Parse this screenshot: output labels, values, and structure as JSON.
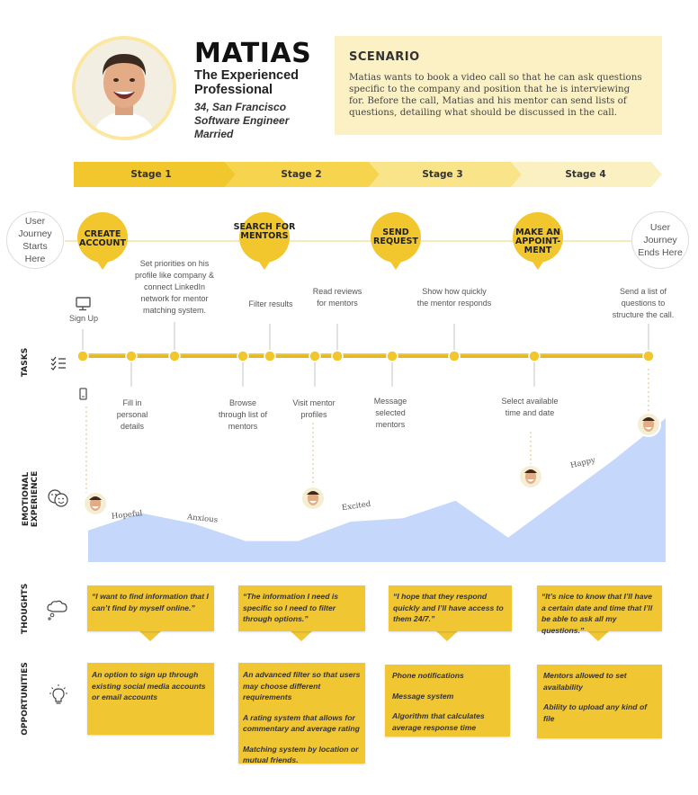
{
  "persona": {
    "name": "MATIAS",
    "role": "The Experienced Professional",
    "details": [
      "34, San Francisco",
      "Software Engineer",
      "Married"
    ]
  },
  "scenario": {
    "title": "SCENARIO",
    "text": "Matias wants to book a video call so that he can ask questions specific to the company and position that he is interviewing for. Before the call, Matias and his mentor can send lists of questions, detailing what should be discussed in the call."
  },
  "stages": [
    "Stage 1",
    "Stage 2",
    "Stage 3",
    "Stage 4"
  ],
  "journey": {
    "start": "User Journey Starts Here",
    "end": "User Journey Ends Here",
    "milestones": [
      "CREATE ACCOUNT",
      "SEARCH FOR MENTORS",
      "SEND REQUEST",
      "MAKE AN APPOINT-MENT"
    ]
  },
  "device_labels": {
    "desktop": "Sign Up"
  },
  "tasks": {
    "above": [
      "Set priorities on his profile like company & connect LinkedIn network for mentor matching system.",
      "Filter results",
      "Read reviews for mentors",
      "Show how quickly the mentor responds",
      "Send a list of questions to structure the call."
    ],
    "below": [
      "Fill in personal details",
      "Browse through list of mentors",
      "Visit mentor profiles",
      "Message selected mentors",
      "Select available time and date"
    ]
  },
  "row_labels": [
    "TASKS",
    "EMOTIONAL EXPERIENCE",
    "THOUGHTS",
    "OPPORTUNITIES"
  ],
  "emotions": [
    "Hopeful",
    "Anxious",
    "Excited",
    "Happy"
  ],
  "emotion_curve": [
    0.18,
    0.28,
    0.22,
    0.12,
    0.12,
    0.23,
    0.25,
    0.35,
    0.14,
    0.36,
    0.58,
    0.82
  ],
  "thoughts": [
    "“I want to find information that I can’t find by myself online.”",
    "“The information I need is specific so I need to filter through options.”",
    "“I hope that they respond quickly and I’ll have access to them 24/7.”",
    "“It’s nice to know that I’ll have a certain date and time that I’ll be able to ask all my questions.”"
  ],
  "opportunities": [
    [
      "An option to sign up through existing social media accounts or email accounts"
    ],
    [
      "An advanced filter so that users may choose different requirements",
      "A rating system that allows for commentary and average rating",
      "Matching system by location or mutual friends."
    ],
    [
      "Phone notifications",
      "Message system",
      "Algorithm that calculates average response time"
    ],
    [
      "Mentors allowed to set availability",
      "Ability to upload any kind of file"
    ]
  ],
  "colors": {
    "accent": "#f1c633",
    "stage1": "#f2c62d",
    "stage2": "#f6d44e",
    "stage3": "#f9e48a",
    "stage4": "#fbf0c2",
    "emotion_area": "#c5d8fb",
    "scenario_bg": "#fbf1c4"
  }
}
